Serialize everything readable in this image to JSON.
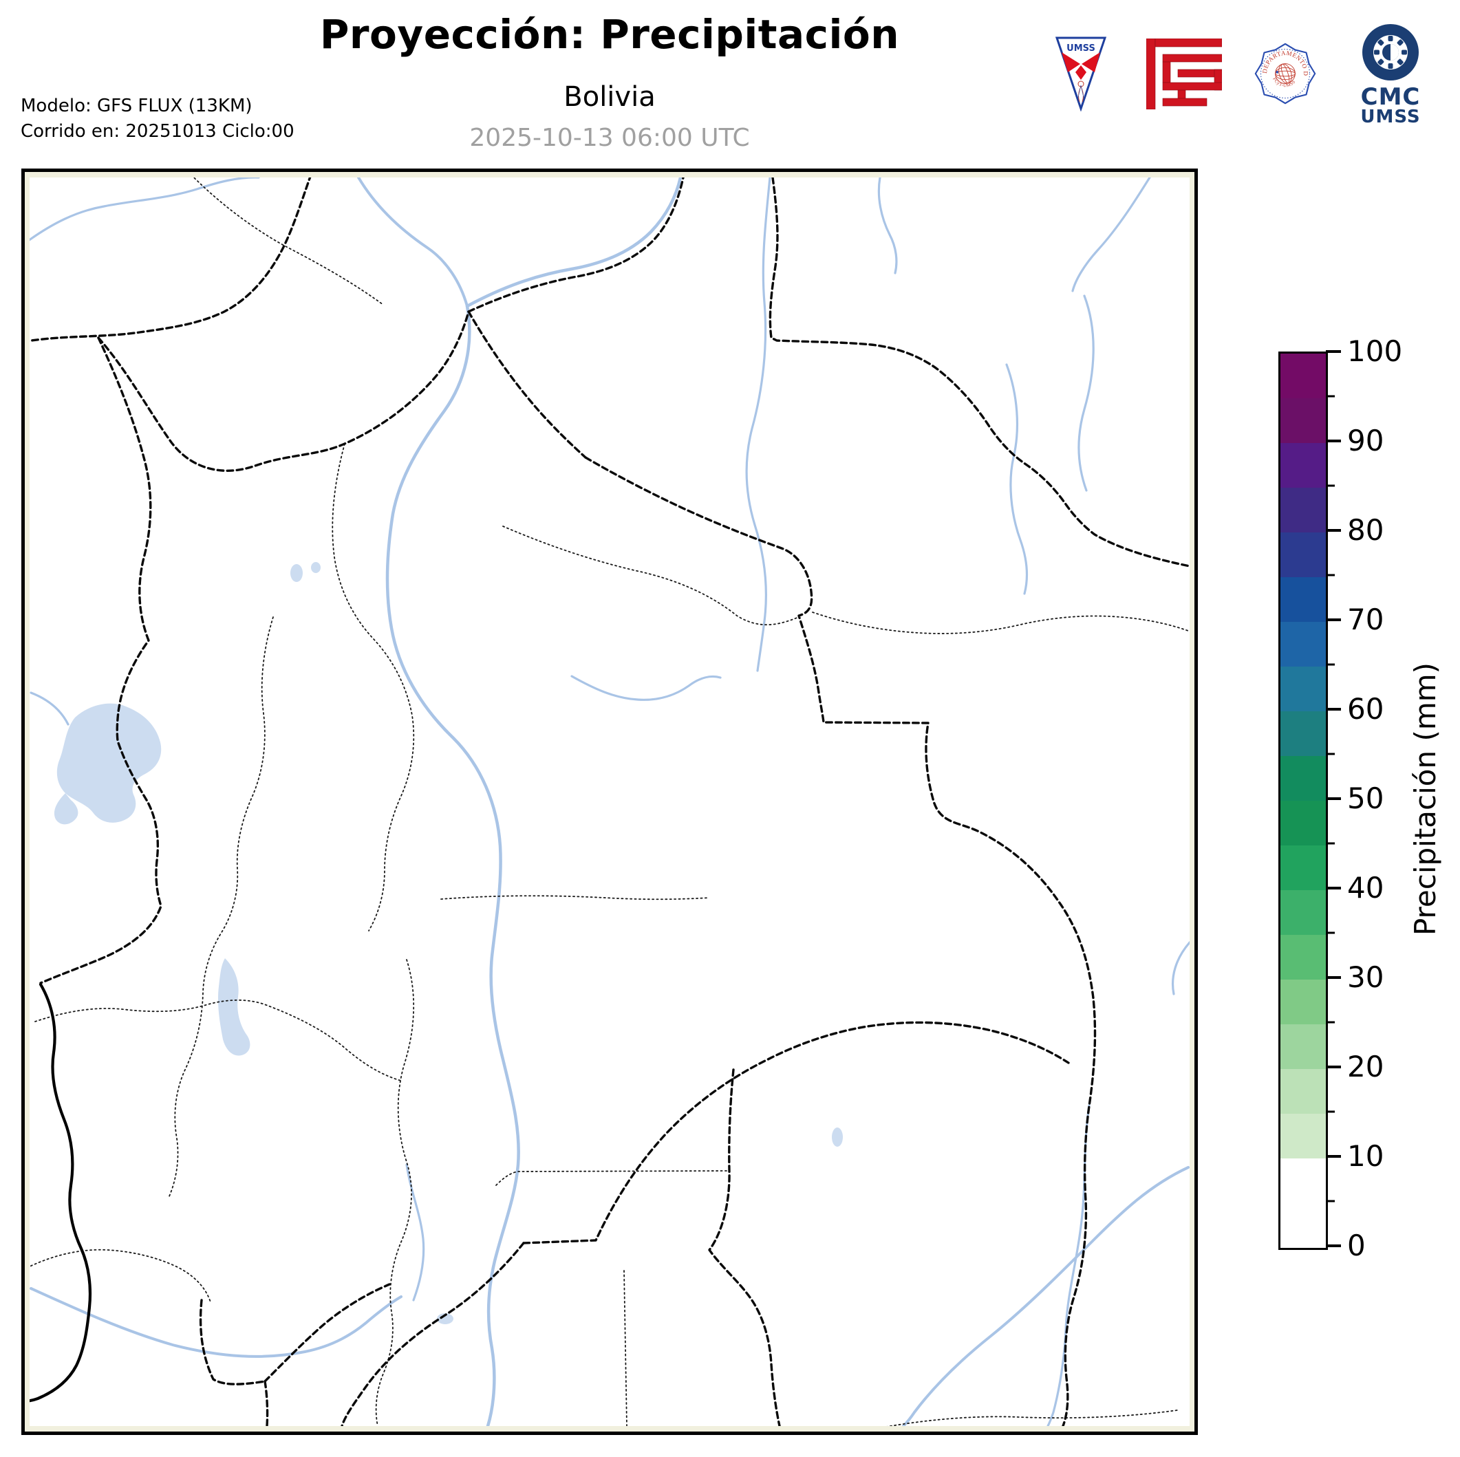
{
  "header": {
    "title": "Proyección: Precipitación",
    "subtitle": "Bolivia",
    "valid_time": "2025-10-13 06:00 UTC",
    "model_line1": "Modelo: GFS FLUX (13KM)",
    "model_line2": "Corrido en: 20251013 Ciclo:00"
  },
  "logos": {
    "umss_shield_text": "UMSS",
    "seal_text_top": "DEPARTAMENTO DE FÍSICA",
    "seal_text_bottom": "FCyT-UMSS",
    "cmc_text_line1": "CMC",
    "cmc_text_line2": "UMSS"
  },
  "colorbar": {
    "axis_label": "Precipitación (mm)",
    "unit": "mm",
    "min": 0,
    "max": 100,
    "major_tick_labels": [
      "0",
      "10",
      "20",
      "30",
      "40",
      "50",
      "60",
      "70",
      "80",
      "90",
      "100"
    ],
    "minor_tick_values": [
      5,
      15,
      25,
      35,
      45,
      55,
      65,
      75,
      85,
      95
    ],
    "segments_bottom_to_top": [
      {
        "from": 0,
        "to": 5,
        "color": "#ffffff"
      },
      {
        "from": 5,
        "to": 10,
        "color": "#ffffff"
      },
      {
        "from": 10,
        "to": 15,
        "color": "#cfe9c8"
      },
      {
        "from": 15,
        "to": 20,
        "color": "#bce1b7"
      },
      {
        "from": 20,
        "to": 25,
        "color": "#9dd59e"
      },
      {
        "from": 25,
        "to": 30,
        "color": "#80ca86"
      },
      {
        "from": 30,
        "to": 35,
        "color": "#59bd73"
      },
      {
        "from": 35,
        "to": 40,
        "color": "#3cb06a"
      },
      {
        "from": 40,
        "to": 45,
        "color": "#21a35e"
      },
      {
        "from": 45,
        "to": 50,
        "color": "#169355"
      },
      {
        "from": 50,
        "to": 55,
        "color": "#128c5e"
      },
      {
        "from": 55,
        "to": 60,
        "color": "#1d7f80"
      },
      {
        "from": 60,
        "to": 65,
        "color": "#20789c"
      },
      {
        "from": 65,
        "to": 70,
        "color": "#1e65a7"
      },
      {
        "from": 70,
        "to": 75,
        "color": "#17519d"
      },
      {
        "from": 75,
        "to": 80,
        "color": "#2c3b90"
      },
      {
        "from": 80,
        "to": 85,
        "color": "#3f2b85"
      },
      {
        "from": 85,
        "to": 90,
        "color": "#551c87"
      },
      {
        "from": 90,
        "to": 95,
        "color": "#6b1067"
      },
      {
        "from": 95,
        "to": 100,
        "color": "#730b66"
      }
    ]
  },
  "map": {
    "frame_color": "#000000",
    "margin_color": "#f1f0de",
    "interior_color": "#ffffff",
    "river_color": "#a9c4e6",
    "lake_color": "#ccdcf0",
    "intl_border_style": "thick dashed black",
    "dept_border_style": "fine dotted black",
    "shading_note": "entire domain below 10 mm (white)"
  }
}
